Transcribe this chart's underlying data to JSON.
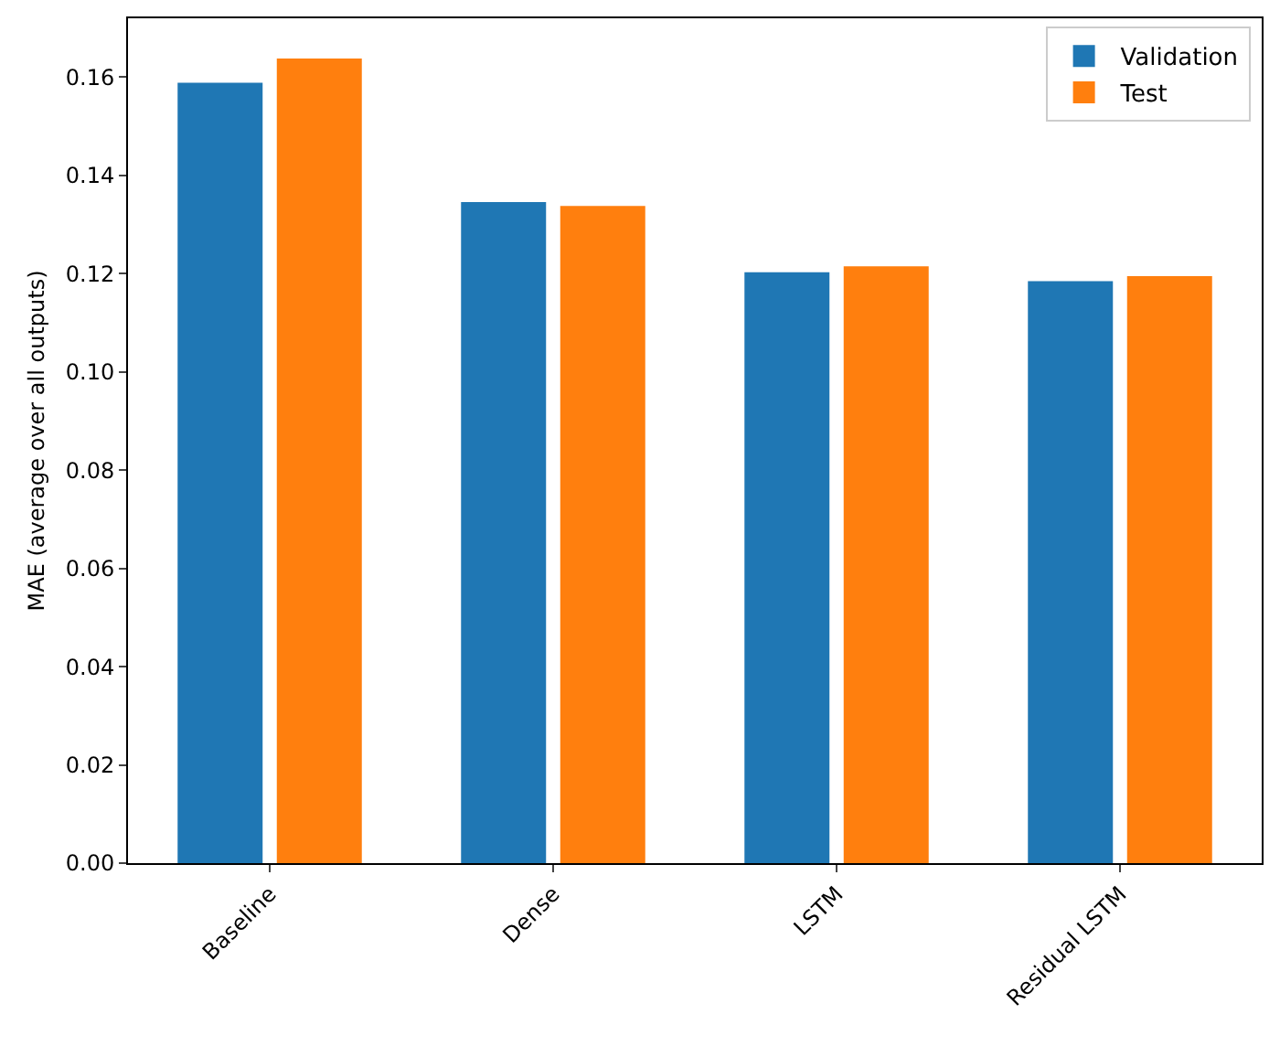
{
  "chart_data": {
    "type": "bar",
    "ylabel": "MAE (average over all outputs)",
    "categories": [
      "Baseline",
      "Dense",
      "LSTM",
      "Residual LSTM"
    ],
    "series": [
      {
        "name": "Validation",
        "color": "#1f77b4",
        "values": [
          0.1589,
          0.1346,
          0.1203,
          0.1185
        ]
      },
      {
        "name": "Test",
        "color": "#ff7f0e",
        "values": [
          0.1638,
          0.1338,
          0.1215,
          0.1195
        ]
      }
    ],
    "ylim": [
      0,
      0.172
    ],
    "yticks": [
      {
        "value": 0,
        "label": "0.00"
      },
      {
        "value": 0.02,
        "label": "0.02"
      },
      {
        "value": 0.04,
        "label": "0.04"
      },
      {
        "value": 0.06,
        "label": "0.06"
      },
      {
        "value": 0.08,
        "label": "0.08"
      },
      {
        "value": 0.1,
        "label": "0.10"
      },
      {
        "value": 0.12,
        "label": "0.12"
      },
      {
        "value": 0.14,
        "label": "0.14"
      },
      {
        "value": 0.16,
        "label": "0.16"
      }
    ],
    "grid": false,
    "legend": "top right"
  }
}
